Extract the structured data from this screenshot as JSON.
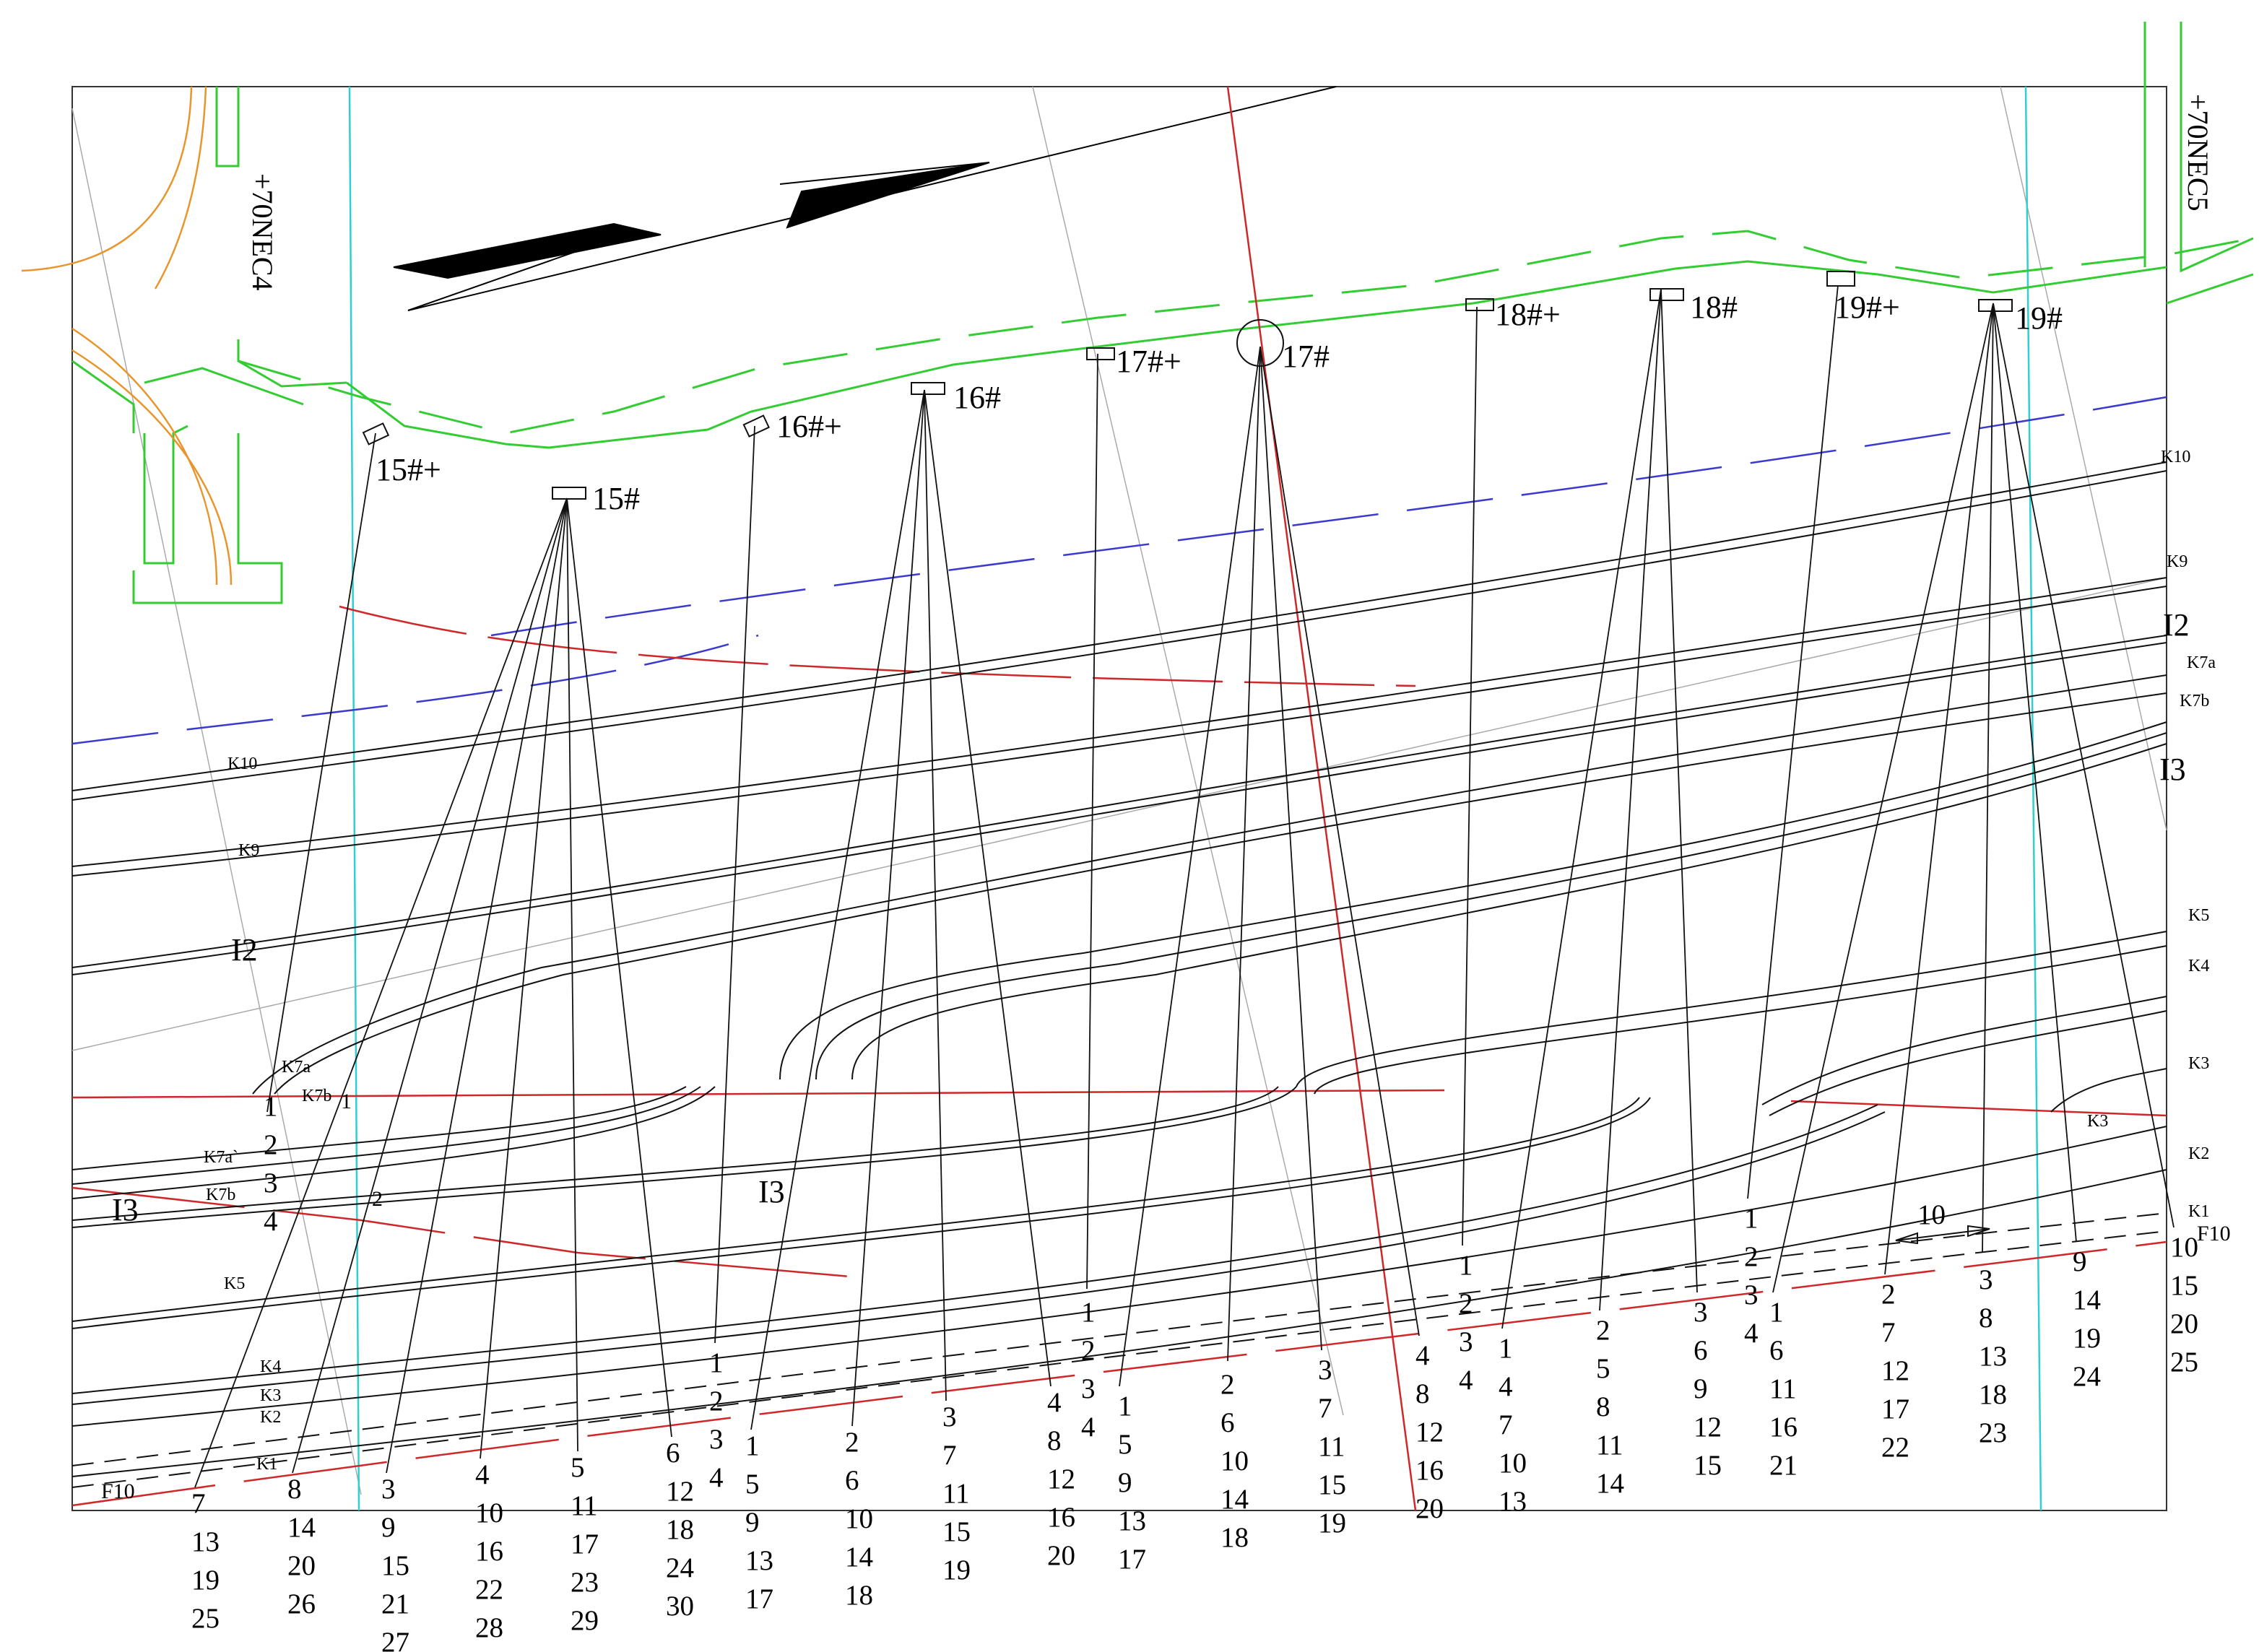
{
  "tunnels": {
    "left": "+70NEC4",
    "right": "+70NEC5"
  },
  "holes": [
    "15#+",
    "15#",
    "16#+",
    "16#",
    "17#+",
    "17#",
    "18#+",
    "18#",
    "19#+",
    "19#"
  ],
  "seams_right": [
    "K10",
    "K9",
    "I2",
    "K7a",
    "K7b",
    "I3",
    "K5",
    "K4",
    "K3",
    "K2",
    "K1"
  ],
  "seams_left": [
    "K10",
    "K9",
    "I2",
    "K7a",
    "K7b",
    "K7a`",
    "K7b",
    "I3",
    "I3",
    "K5",
    "K4",
    "K3",
    "K2",
    "K1"
  ],
  "labels_misc": {
    "k3_inner": "K3",
    "dim_10": "10",
    "l1": "1",
    "l2": "2"
  },
  "faults": {
    "left": "F10",
    "right": "F10"
  },
  "colors": {
    "tunnel": "#33cc33",
    "orange": "#e8962c",
    "red": "#d0282a",
    "blue": "#3a3acf",
    "cyan": "#30d0d0",
    "line": "#111111"
  },
  "groups": [
    [
      "1",
      "2",
      "3",
      "4"
    ],
    [
      "7",
      "13",
      "19",
      "25"
    ],
    [
      "8",
      "14",
      "20",
      "26"
    ],
    [
      "3",
      "9",
      "15",
      "21",
      "27"
    ],
    [
      "4",
      "10",
      "16",
      "22",
      "28"
    ],
    [
      "5",
      "11",
      "17",
      "23",
      "29"
    ],
    [
      "6",
      "12",
      "18",
      "24",
      "30"
    ],
    [
      "1",
      "2",
      "3",
      "4"
    ],
    [
      "1",
      "5",
      "9",
      "13",
      "17"
    ],
    [
      "2",
      "6",
      "10",
      "14",
      "18"
    ],
    [
      "3",
      "7",
      "11",
      "15",
      "19"
    ],
    [
      "4",
      "8",
      "12",
      "16",
      "20"
    ],
    [
      "1",
      "2",
      "3",
      "4"
    ],
    [
      "1",
      "5",
      "9",
      "13",
      "17"
    ],
    [
      "2",
      "6",
      "10",
      "14",
      "18"
    ],
    [
      "3",
      "7",
      "11",
      "15",
      "19"
    ],
    [
      "4",
      "8",
      "12",
      "16",
      "20"
    ],
    [
      "1",
      "2",
      "3",
      "4"
    ],
    [
      "1",
      "4",
      "7",
      "10",
      "13"
    ],
    [
      "2",
      "5",
      "8",
      "11",
      "14"
    ],
    [
      "3",
      "6",
      "9",
      "12",
      "15"
    ],
    [
      "1",
      "2",
      "3",
      "4"
    ],
    [
      "1",
      "6",
      "11",
      "16",
      "21"
    ],
    [
      "2",
      "7",
      "12",
      "17",
      "22"
    ],
    [
      "3",
      "8",
      "13",
      "18",
      "23"
    ],
    [
      "9",
      "14",
      "19",
      "24"
    ],
    [
      "10",
      "15",
      "20",
      "25"
    ]
  ]
}
